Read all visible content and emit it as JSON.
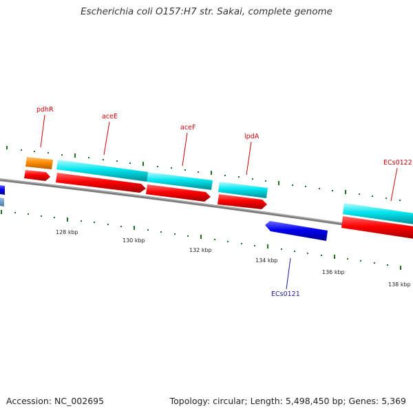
{
  "title": "Escherichia coli O157:H7 str. Sakai, complete genome",
  "accession": "Accession: NC_002695",
  "footer_info": "Topology: circular; Length: 5,498,450 bp; Genes: 5,369",
  "scale_labels": [
    "128 kbp",
    "130 kbp",
    "132 kbp",
    "134 kbp",
    "136 kbp",
    "138 kbp"
  ],
  "gene_labels": [
    "pdhR",
    "aceE",
    "aceF",
    "lpdA",
    "ECs0122",
    "ECs0121"
  ],
  "colors": {
    "backbone": "#7a7a7a",
    "forward_cds": "#ff0000",
    "forward_gene_cyan": "#00e5ee",
    "regulator_orange": "#ff8c00",
    "reverse_cds": "#0000ee",
    "reverse_label": "#1a1a9a",
    "forward_label": "#cc0000",
    "tick_marks": "#1f6e1f"
  }
}
